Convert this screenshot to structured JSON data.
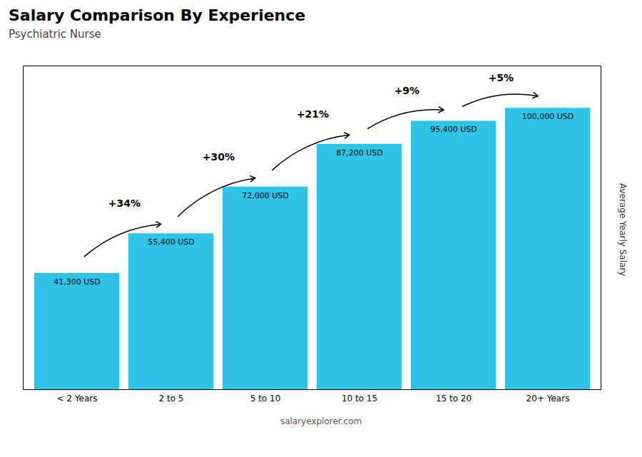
{
  "chart_data": {
    "type": "bar",
    "title": "Salary Comparison By Experience",
    "subtitle": "Psychiatric Nurse",
    "ylabel": "Average Yearly Salary",
    "categories": [
      "< 2 Years",
      "2 to 5",
      "5 to 10",
      "10 to 15",
      "15 to 20",
      "20+ Years"
    ],
    "values": [
      41300,
      55400,
      72000,
      87200,
      95400,
      100000
    ],
    "value_labels": [
      "41,300 USD",
      "55,400 USD",
      "72,000 USD",
      "87,200 USD",
      "95,400 USD",
      "100,000 USD"
    ],
    "data_labels": true,
    "annotations": [
      "+34%",
      "+30%",
      "+21%",
      "+9%",
      "+5%"
    ],
    "caption": "salaryexplorer.com",
    "color": "#2ec4e8",
    "ylim": [
      0,
      115000
    ],
    "grid": false,
    "tick_labels": "x"
  }
}
